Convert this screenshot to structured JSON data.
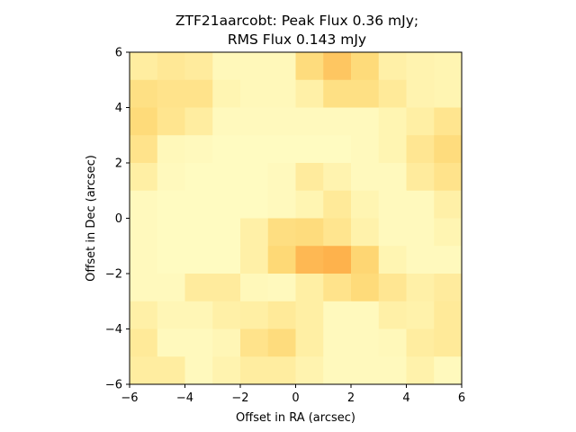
{
  "chart_data": {
    "type": "heatmap",
    "title_lines": [
      "ZTF21aarcobt: Peak Flux 0.36 mJy;",
      "RMS Flux 0.143 mJy"
    ],
    "xlabel": "Offset in RA (arcsec)",
    "ylabel": "Offset in Dec (arcsec)",
    "xlim": [
      -6,
      6
    ],
    "ylim": [
      -6,
      6
    ],
    "xticks": [
      -6,
      -4,
      -2,
      0,
      2,
      4,
      6
    ],
    "yticks": [
      -6,
      -4,
      -2,
      0,
      2,
      4,
      6
    ],
    "xtick_labels": [
      "−6",
      "−4",
      "−2",
      "0",
      "2",
      "4",
      "6"
    ],
    "ytick_labels": [
      "−6",
      "−4",
      "−2",
      "0",
      "2",
      "4",
      "6"
    ],
    "colormap": [
      "#ffffcc",
      "#ffeda0",
      "#fed976",
      "#feb24c",
      "#fd8d3c",
      "#fc4e2a"
    ],
    "vmin": 0.0,
    "vmax": 0.6,
    "pixel_size_arcsec": 1.0,
    "grid_values_top_to_bottom": [
      [
        0.12,
        0.15,
        0.13,
        0.05,
        0.05,
        0.05,
        0.22,
        0.3,
        0.23,
        0.1,
        0.08,
        0.07
      ],
      [
        0.2,
        0.18,
        0.18,
        0.07,
        0.05,
        0.05,
        0.1,
        0.2,
        0.2,
        0.14,
        0.08,
        0.07
      ],
      [
        0.23,
        0.17,
        0.12,
        0.04,
        0.04,
        0.04,
        0.04,
        0.04,
        0.04,
        0.07,
        0.11,
        0.17
      ],
      [
        0.18,
        0.05,
        0.04,
        0.03,
        0.03,
        0.03,
        0.03,
        0.03,
        0.04,
        0.07,
        0.16,
        0.22
      ],
      [
        0.11,
        0.04,
        0.03,
        0.03,
        0.03,
        0.04,
        0.13,
        0.08,
        0.04,
        0.04,
        0.13,
        0.18
      ],
      [
        0.04,
        0.03,
        0.03,
        0.03,
        0.03,
        0.04,
        0.07,
        0.14,
        0.07,
        0.04,
        0.04,
        0.1
      ],
      [
        0.04,
        0.03,
        0.03,
        0.03,
        0.1,
        0.21,
        0.22,
        0.17,
        0.09,
        0.04,
        0.04,
        0.07
      ],
      [
        0.04,
        0.03,
        0.03,
        0.03,
        0.1,
        0.24,
        0.34,
        0.36,
        0.25,
        0.07,
        0.04,
        0.04
      ],
      [
        0.04,
        0.04,
        0.13,
        0.13,
        0.05,
        0.04,
        0.11,
        0.18,
        0.23,
        0.16,
        0.1,
        0.13
      ],
      [
        0.1,
        0.06,
        0.06,
        0.1,
        0.11,
        0.14,
        0.11,
        0.04,
        0.04,
        0.1,
        0.09,
        0.14
      ],
      [
        0.14,
        0.04,
        0.04,
        0.06,
        0.18,
        0.22,
        0.11,
        0.04,
        0.04,
        0.05,
        0.12,
        0.14
      ],
      [
        0.12,
        0.12,
        0.04,
        0.08,
        0.12,
        0.12,
        0.08,
        0.04,
        0.04,
        0.04,
        0.09,
        0.04
      ]
    ]
  }
}
